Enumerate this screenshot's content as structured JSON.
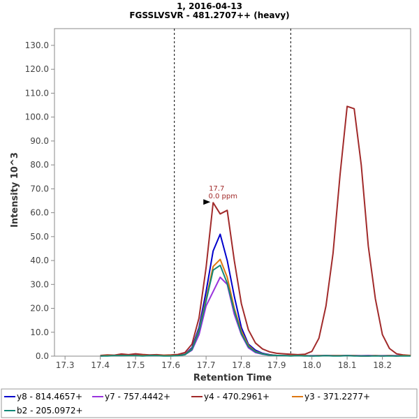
{
  "chart_data": {
    "type": "line",
    "title": "1, 2016-04-13",
    "subtitle": "FGSSLVSVR - 481.2707++ (heavy)",
    "xlabel": "Retention Time",
    "ylabel": "Intensity 10^3",
    "xlim": [
      17.27,
      18.28
    ],
    "ylim": [
      0,
      137
    ],
    "x_ticks": [
      "17.3",
      "17.4",
      "17.5",
      "17.6",
      "17.7",
      "17.8",
      "17.9",
      "18.0",
      "18.1",
      "18.2"
    ],
    "y_ticks": [
      "0.0",
      "10.0",
      "20.0",
      "30.0",
      "40.0",
      "50.0",
      "60.0",
      "70.0",
      "80.0",
      "90.0",
      "100.0",
      "110.0",
      "120.0",
      "130.0"
    ],
    "boundaries": [
      17.61,
      17.94
    ],
    "grid": false,
    "legend_position": "bottom",
    "annotation": {
      "rt_label": "17.7",
      "ppm_label": "0.0 ppm",
      "x": 17.72,
      "y": 64.2
    },
    "series": [
      {
        "name": "y8 - 814.4657+",
        "color": "#0000cc",
        "x": [
          17.4,
          17.42,
          17.44,
          17.46,
          17.48,
          17.5,
          17.52,
          17.54,
          17.56,
          17.58,
          17.6,
          17.62,
          17.64,
          17.66,
          17.68,
          17.7,
          17.72,
          17.74,
          17.76,
          17.78,
          17.8,
          17.82,
          17.84,
          17.86,
          17.88,
          17.9,
          17.92,
          17.94,
          17.96,
          17.98,
          18.0,
          18.02,
          18.04,
          18.06,
          18.08,
          18.1,
          18.12,
          18.14,
          18.16,
          18.18,
          18.2,
          18.22,
          18.24,
          18.26,
          18.28
        ],
        "y": [
          0.1,
          0.2,
          0.3,
          0.2,
          0.3,
          0.4,
          0.3,
          0.2,
          0.3,
          0.2,
          0.2,
          0.3,
          0.8,
          3.5,
          12.0,
          27.0,
          44.0,
          51.0,
          40.0,
          25.0,
          12.0,
          5.0,
          2.5,
          1.2,
          0.6,
          0.3,
          0.2,
          0.2,
          0.2,
          0.2,
          0.1,
          0.2,
          0.3,
          0.2,
          0.2,
          0.3,
          0.2,
          0.1,
          0.1,
          0.2,
          0.1,
          0.2,
          0.1,
          0.2,
          0.2
        ]
      },
      {
        "name": "y7 - 757.4442+",
        "color": "#9933dd",
        "x": [
          17.4,
          17.42,
          17.44,
          17.46,
          17.48,
          17.5,
          17.52,
          17.54,
          17.56,
          17.58,
          17.6,
          17.62,
          17.64,
          17.66,
          17.68,
          17.7,
          17.72,
          17.74,
          17.76,
          17.78,
          17.8,
          17.82,
          17.84,
          17.86,
          17.88,
          17.9,
          17.92,
          17.94,
          17.96,
          17.98,
          18.0,
          18.02,
          18.04,
          18.06,
          18.08,
          18.1,
          18.12,
          18.14,
          18.16,
          18.18,
          18.2,
          18.22,
          18.24,
          18.26,
          18.28
        ],
        "y": [
          0.2,
          0.3,
          0.2,
          0.4,
          0.3,
          0.2,
          0.4,
          0.3,
          0.2,
          0.3,
          0.2,
          0.3,
          0.6,
          2.5,
          9.0,
          21.0,
          27.0,
          33.0,
          30.0,
          17.5,
          9.0,
          3.5,
          1.5,
          0.8,
          0.4,
          0.3,
          0.2,
          0.2,
          0.3,
          0.2,
          0.2,
          0.3,
          0.2,
          0.3,
          0.2,
          0.2,
          0.3,
          0.2,
          0.3,
          0.2,
          0.2,
          0.3,
          0.2,
          0.3,
          0.2
        ]
      },
      {
        "name": "y4 - 470.2961+",
        "color": "#a12a2a",
        "x": [
          17.4,
          17.42,
          17.44,
          17.46,
          17.48,
          17.5,
          17.52,
          17.54,
          17.56,
          17.58,
          17.6,
          17.62,
          17.64,
          17.66,
          17.68,
          17.7,
          17.72,
          17.74,
          17.76,
          17.78,
          17.8,
          17.82,
          17.84,
          17.86,
          17.88,
          17.9,
          17.92,
          17.94,
          17.96,
          17.98,
          18.0,
          18.02,
          18.04,
          18.06,
          18.08,
          18.1,
          18.12,
          18.14,
          18.16,
          18.18,
          18.2,
          18.22,
          18.24,
          18.26,
          18.28
        ],
        "y": [
          0.3,
          0.5,
          0.4,
          0.9,
          0.6,
          1.0,
          0.7,
          0.5,
          0.6,
          0.4,
          0.5,
          0.7,
          1.5,
          5.0,
          16.0,
          37.0,
          64.2,
          59.5,
          61.0,
          40.0,
          22.0,
          11.0,
          5.5,
          3.0,
          1.8,
          1.2,
          1.0,
          0.8,
          0.6,
          0.8,
          2.0,
          7.5,
          21.0,
          43.0,
          76.0,
          104.5,
          103.5,
          80.0,
          46.0,
          24.0,
          9.0,
          3.2,
          1.0,
          0.5,
          0.3
        ]
      },
      {
        "name": "y3 - 371.2277+",
        "color": "#dd7711",
        "x": [
          17.4,
          17.42,
          17.44,
          17.46,
          17.48,
          17.5,
          17.52,
          17.54,
          17.56,
          17.58,
          17.6,
          17.62,
          17.64,
          17.66,
          17.68,
          17.7,
          17.72,
          17.74,
          17.76,
          17.78,
          17.8,
          17.82,
          17.84,
          17.86,
          17.88,
          17.9,
          17.92,
          17.94,
          17.96,
          17.98,
          18.0,
          18.02,
          18.04,
          18.06,
          18.08,
          18.1,
          18.12,
          18.14,
          18.16,
          18.18,
          18.2,
          18.22,
          18.24,
          18.26,
          18.28
        ],
        "y": [
          0.1,
          0.2,
          0.2,
          0.3,
          0.2,
          0.3,
          0.2,
          0.2,
          0.3,
          0.2,
          0.2,
          0.2,
          0.7,
          3.0,
          11.0,
          24.0,
          37.5,
          40.5,
          33.0,
          20.0,
          10.5,
          4.5,
          2.0,
          1.0,
          0.5,
          0.3,
          0.2,
          0.2,
          0.2,
          0.2,
          0.1,
          0.2,
          0.2,
          0.2,
          0.2,
          0.2,
          0.2,
          0.1,
          0.1,
          0.2,
          0.1,
          0.2,
          0.1,
          0.2,
          0.2
        ]
      },
      {
        "name": "b2 - 205.0972+",
        "color": "#118877",
        "x": [
          17.4,
          17.42,
          17.44,
          17.46,
          17.48,
          17.5,
          17.52,
          17.54,
          17.56,
          17.58,
          17.6,
          17.62,
          17.64,
          17.66,
          17.68,
          17.7,
          17.72,
          17.74,
          17.76,
          17.78,
          17.8,
          17.82,
          17.84,
          17.86,
          17.88,
          17.9,
          17.92,
          17.94,
          17.96,
          17.98,
          18.0,
          18.02,
          18.04,
          18.06,
          18.08,
          18.1,
          18.12,
          18.14,
          18.16,
          18.18,
          18.2,
          18.22,
          18.24,
          18.26,
          18.28
        ],
        "y": [
          0.1,
          0.1,
          0.2,
          0.2,
          0.2,
          0.2,
          0.1,
          0.2,
          0.2,
          0.1,
          0.1,
          0.2,
          0.6,
          2.8,
          10.5,
          23.0,
          36.0,
          38.0,
          30.5,
          19.0,
          9.5,
          4.0,
          1.8,
          0.9,
          0.4,
          0.3,
          0.2,
          0.1,
          0.2,
          0.1,
          0.1,
          0.1,
          0.2,
          0.1,
          0.1,
          0.2,
          0.1,
          0.1,
          0.1,
          0.1,
          0.1,
          0.1,
          0.1,
          0.1,
          0.1
        ]
      }
    ]
  }
}
